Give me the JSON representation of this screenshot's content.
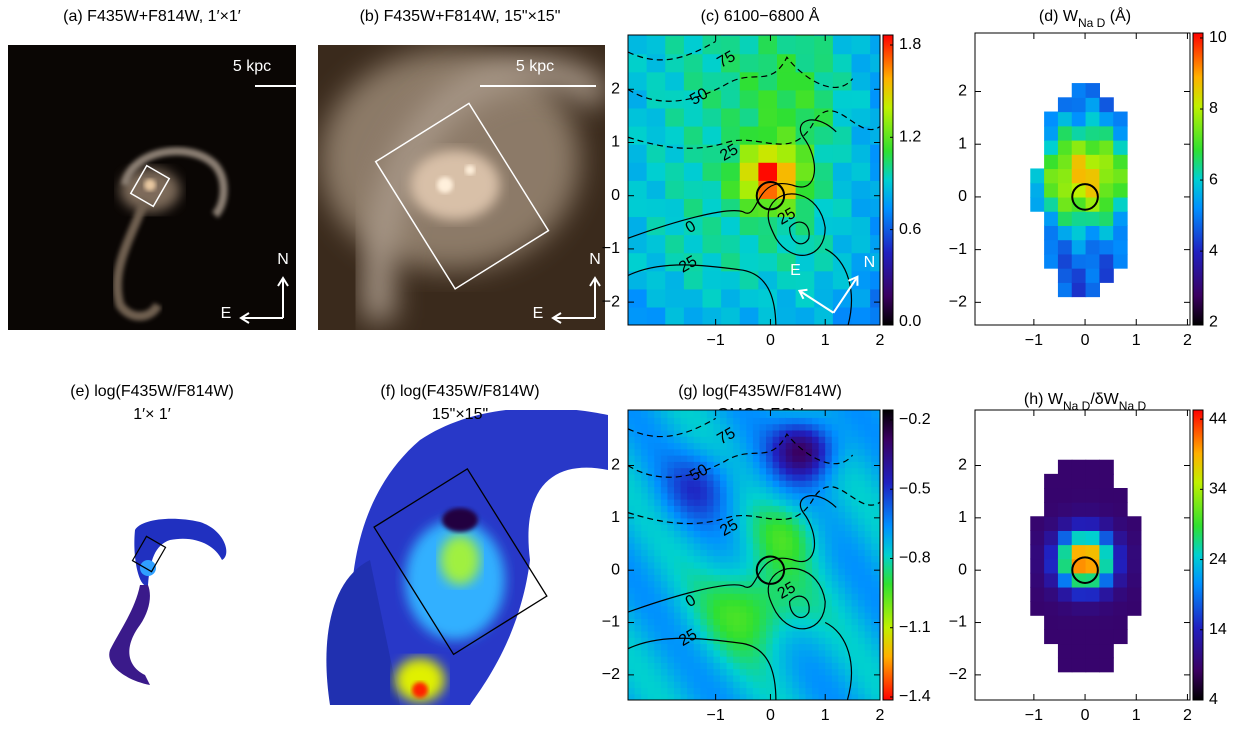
{
  "panels": [
    {
      "title": "(a) F435W+F814W, 1′×1′",
      "scale_bar": "5 kpc",
      "compass": {
        "north": "N",
        "east": "E"
      }
    },
    {
      "title": "(b) F435W+F814W, 15\"×15\"",
      "scale_bar": "5 kpc",
      "compass": {
        "north": "N",
        "east": "E"
      }
    },
    {
      "title": "(c) 6100−6800 Å",
      "xlim": [
        -2.6,
        2.0
      ],
      "ylim": [
        -2.43,
        3.02
      ],
      "xticks": [
        {
          "value": -1,
          "label": "−1"
        },
        0,
        1,
        2
      ],
      "yticks": [
        {
          "value": -2,
          "label": "−2"
        },
        {
          "value": -1,
          "label": "−1"
        },
        0,
        1,
        2
      ],
      "colorbar": {
        "lim": [
          -0.02,
          1.865
        ],
        "ticks": [
          {
            "value": 0,
            "label": "0.0"
          },
          0.6,
          1.2,
          1.8
        ]
      },
      "contour_labels": [
        "75",
        "50",
        "25",
        "0",
        "25",
        "25"
      ],
      "compass": {
        "north": "N",
        "east": "E"
      }
    },
    {
      "title_parts": [
        "(d) W",
        "Na D",
        " (Å)"
      ],
      "xlim": [
        -2.15,
        2.05
      ],
      "ylim": [
        -2.43,
        3.11
      ],
      "xticks": [
        {
          "value": -1,
          "label": "−1"
        },
        0,
        1,
        2
      ],
      "yticks": [
        {
          "value": -2,
          "label": "−2"
        },
        {
          "value": -1,
          "label": "−1"
        },
        0,
        1,
        2
      ],
      "colorbar": {
        "lim": [
          1.92,
          10.14
        ],
        "ticks": [
          2,
          4,
          6,
          8,
          10
        ]
      }
    },
    {
      "title": "(e) log(F435W/F814W)",
      "subtitle": "1′× 1′"
    },
    {
      "title": "(f) log(F435W/F814W)",
      "subtitle": "15\"×15\""
    },
    {
      "title": "(g) log(F435W/F814W)",
      "subtitle": "GMOS FOV",
      "xlim": [
        -2.6,
        2.0
      ],
      "ylim": [
        -2.48,
        3.06
      ],
      "xticks": [
        {
          "value": -1,
          "label": "−1"
        },
        0,
        1,
        2
      ],
      "yticks": [
        {
          "value": -2,
          "label": "−2"
        },
        {
          "value": -1,
          "label": "−1"
        },
        0,
        1,
        2
      ],
      "colorbar": {
        "lim": [
          -1.413,
          -0.157
        ],
        "ticks": [
          {
            "value": -1.4,
            "label": "−1.4"
          },
          {
            "value": -1.1,
            "label": "−1.1"
          },
          {
            "value": -0.8,
            "label": "−0.8"
          },
          {
            "value": -0.5,
            "label": "−0.5"
          },
          {
            "value": -0.2,
            "label": "−0.2"
          }
        ]
      },
      "contour_labels": [
        "75",
        "50",
        "25",
        "0",
        "25",
        "25"
      ]
    },
    {
      "title_parts": [
        "(h) W",
        "Na D",
        "/δW",
        "Na D"
      ],
      "xlim": [
        -2.15,
        2.05
      ],
      "ylim": [
        -2.48,
        3.06
      ],
      "xticks": [
        {
          "value": -1,
          "label": "−1"
        },
        0,
        1,
        2
      ],
      "yticks": [
        {
          "value": -2,
          "label": "−2"
        },
        {
          "value": -1,
          "label": "−1"
        },
        0,
        1,
        2
      ],
      "colorbar": {
        "lim": [
          4,
          45.3
        ],
        "ticks": [
          4,
          14,
          24,
          34,
          44
        ]
      }
    }
  ]
}
